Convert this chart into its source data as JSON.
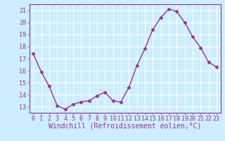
{
  "x": [
    0,
    1,
    2,
    3,
    4,
    5,
    6,
    7,
    8,
    9,
    10,
    11,
    12,
    13,
    14,
    15,
    16,
    17,
    18,
    19,
    20,
    21,
    22,
    23
  ],
  "y": [
    17.4,
    15.9,
    14.7,
    13.1,
    12.8,
    13.2,
    13.4,
    13.5,
    13.9,
    14.2,
    13.5,
    13.4,
    14.6,
    16.4,
    17.8,
    19.4,
    20.4,
    21.1,
    20.9,
    20.0,
    18.8,
    17.9,
    16.7,
    16.3
  ],
  "line_color": "#993399",
  "marker": "D",
  "markersize": 2.5,
  "linewidth": 1.0,
  "xlabel": "Windchill (Refroidissement éolien,°C)",
  "xlim": [
    -0.5,
    23.5
  ],
  "ylim": [
    12.5,
    21.5
  ],
  "yticks": [
    13,
    14,
    15,
    16,
    17,
    18,
    19,
    20,
    21
  ],
  "xticks": [
    0,
    1,
    2,
    3,
    4,
    5,
    6,
    7,
    8,
    9,
    10,
    11,
    12,
    13,
    14,
    15,
    16,
    17,
    18,
    19,
    20,
    21,
    22,
    23
  ],
  "bg_color": "#cceeff",
  "grid_color": "#aaddcc",
  "spine_color": "#993399",
  "tick_color": "#993399",
  "label_color": "#993399",
  "xlabel_fontsize": 7.0,
  "tick_fontsize": 6.0
}
